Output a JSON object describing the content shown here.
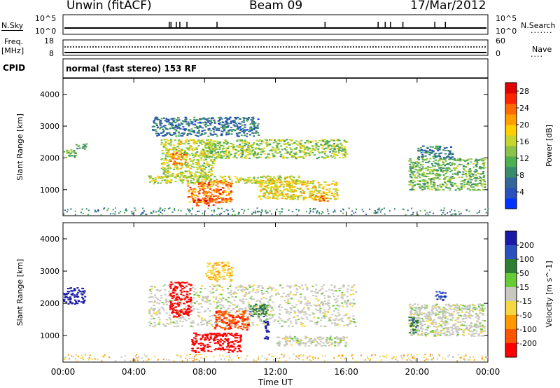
{
  "header": {
    "site": "Unwin (fitACF)",
    "beam": "Beam 09",
    "date": "17/Mar/2012"
  },
  "noise_panel": {
    "left_label": "N.Sky",
    "left_ticks": [
      "10^5",
      "10^0"
    ],
    "right_label": "N.Search",
    "right_ticks": [
      "10^5",
      "10^0"
    ]
  },
  "freq_panel": {
    "left_label_1": "Freq.",
    "left_label_2": "[MHz]",
    "left_ticks": [
      "18",
      "8"
    ],
    "right_ticks": [
      "60",
      "0"
    ],
    "right_label": "Nave"
  },
  "cpid": {
    "label": "CPID",
    "text": "normal (fast stereo) 153 RF"
  },
  "colors": {
    "power_scale": [
      "#0033ff",
      "#2a52be",
      "#336699",
      "#3a8a6e",
      "#4caf50",
      "#8bc34a",
      "#c6d62e",
      "#ffd000",
      "#ffa000",
      "#ff6a00",
      "#ff2400",
      "#e00000"
    ],
    "velocity_scale": [
      "#1a1aa8",
      "#2a52be",
      "#2e7d32",
      "#66cc33",
      "#c8c8c0",
      "#f5d742",
      "#ff9900",
      "#ff5500",
      "#ff0000"
    ]
  },
  "chart_data": [
    {
      "type": "heatmap",
      "name": "power",
      "ylabel": "Slant Range [km]",
      "xlabel": "Time UT",
      "x_ticks": [
        "00:00",
        "04:00",
        "08:00",
        "12:00",
        "16:00",
        "20:00",
        "00:00"
      ],
      "x_range_hours": [
        0,
        24
      ],
      "y_ticks": [
        1000,
        2000,
        3000,
        4000
      ],
      "ylim": [
        180,
        4500
      ],
      "colorbar": {
        "label": "Power [dB]",
        "ticks": [
          4,
          8,
          12,
          16,
          20,
          24,
          28
        ],
        "range": [
          0,
          30
        ]
      },
      "regions": [
        {
          "t": [
            0.0,
            0.7
          ],
          "r": [
            2000,
            2300
          ],
          "level": 12
        },
        {
          "t": [
            0.7,
            1.3
          ],
          "r": [
            2300,
            2500
          ],
          "level": 10
        },
        {
          "t": [
            4.8,
            13.5
          ],
          "r": [
            1200,
            1450
          ],
          "level": 16
        },
        {
          "t": [
            5.5,
            8.5
          ],
          "r": [
            1400,
            2600
          ],
          "level": 16
        },
        {
          "t": [
            7.0,
            9.5
          ],
          "r": [
            600,
            1300
          ],
          "level": 24
        },
        {
          "t": [
            7.5,
            8.5
          ],
          "r": [
            500,
            750
          ],
          "level": 28
        },
        {
          "t": [
            6.0,
            7.0
          ],
          "r": [
            1800,
            2200
          ],
          "level": 22
        },
        {
          "t": [
            5.0,
            11.0
          ],
          "r": [
            2700,
            3300
          ],
          "level": 6
        },
        {
          "t": [
            8.0,
            16.0
          ],
          "r": [
            2000,
            2600
          ],
          "level": 14
        },
        {
          "t": [
            11.0,
            15.5
          ],
          "r": [
            700,
            1300
          ],
          "level": 18
        },
        {
          "t": [
            14.0,
            15.0
          ],
          "r": [
            650,
            850
          ],
          "level": 22
        },
        {
          "t": [
            19.5,
            23.8
          ],
          "r": [
            1000,
            2000
          ],
          "level": 12
        },
        {
          "t": [
            20.0,
            22.0
          ],
          "r": [
            2000,
            2400
          ],
          "level": 6
        }
      ]
    },
    {
      "type": "heatmap",
      "name": "velocity",
      "ylabel": "Slant Range [km]",
      "xlabel": "Time UT",
      "x_ticks": [
        "00:00",
        "04:00",
        "08:00",
        "12:00",
        "16:00",
        "20:00",
        "00:00"
      ],
      "x_range_hours": [
        0,
        24
      ],
      "y_ticks": [
        1000,
        2000,
        3000,
        4000
      ],
      "ylim": [
        180,
        4500
      ],
      "colorbar": {
        "label": "Velocity [m s^-1]",
        "ticks": [
          200,
          100,
          50,
          15,
          -15,
          -50,
          -100,
          -200
        ],
        "range": [
          -250,
          250
        ]
      },
      "regions": [
        {
          "t": [
            0.0,
            1.2
          ],
          "r": [
            2000,
            2500
          ],
          "v": 200
        },
        {
          "t": [
            4.8,
            16.5
          ],
          "r": [
            1300,
            2600
          ],
          "v": 0
        },
        {
          "t": [
            7.2,
            10.0
          ],
          "r": [
            500,
            1100
          ],
          "v": -220
        },
        {
          "t": [
            6.0,
            7.2
          ],
          "r": [
            1600,
            2700
          ],
          "v": -180
        },
        {
          "t": [
            8.5,
            10.5
          ],
          "r": [
            1200,
            1800
          ],
          "v": -150
        },
        {
          "t": [
            8.0,
            9.5
          ],
          "r": [
            2700,
            3300
          ],
          "v": -40
        },
        {
          "t": [
            10.5,
            11.5
          ],
          "r": [
            1600,
            2000
          ],
          "v": 60
        },
        {
          "t": [
            11.3,
            11.6
          ],
          "r": [
            900,
            1500
          ],
          "v": 220
        },
        {
          "t": [
            12.0,
            16.0
          ],
          "r": [
            700,
            1000
          ],
          "v": 0
        },
        {
          "t": [
            19.5,
            23.8
          ],
          "r": [
            1000,
            2000
          ],
          "v": 0
        },
        {
          "t": [
            19.5,
            20.0
          ],
          "r": [
            1100,
            1600
          ],
          "v": 60
        },
        {
          "t": [
            21.0,
            21.6
          ],
          "r": [
            2100,
            2400
          ],
          "v": 150
        }
      ]
    }
  ]
}
